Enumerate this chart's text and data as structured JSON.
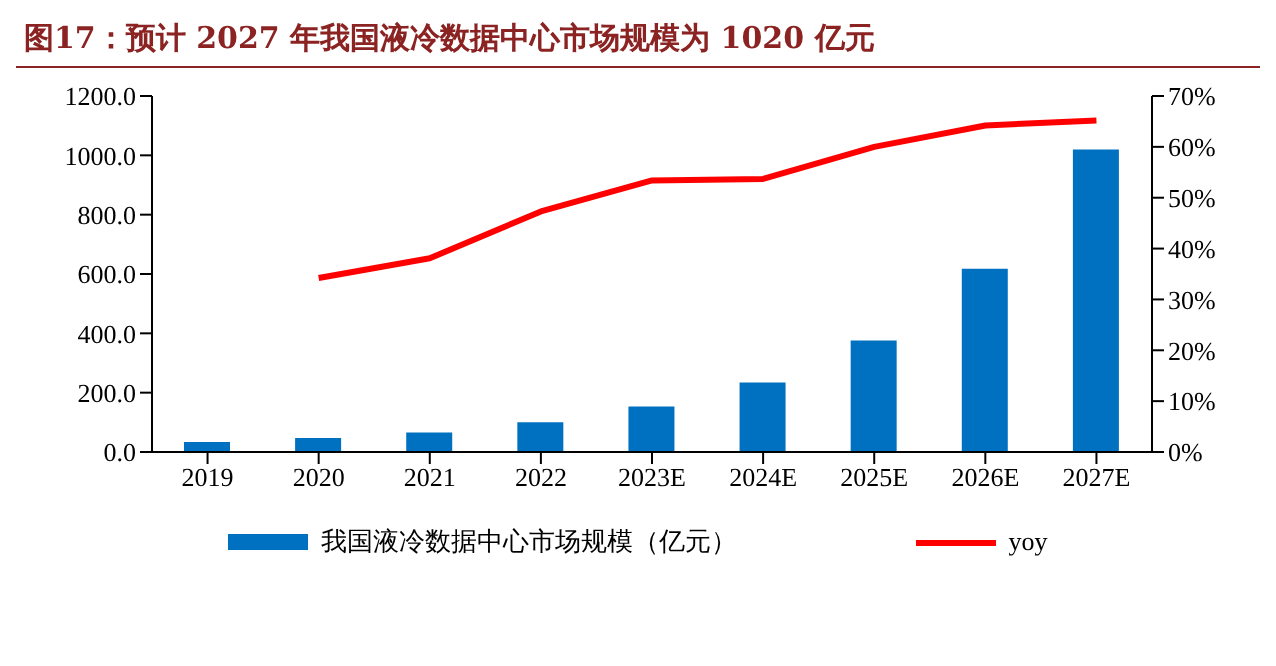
{
  "chart_data": {
    "type": "bar",
    "title": "图17：预计 2027 年我国液冷数据中心市场规模为 1020 亿元",
    "categories": [
      "2019",
      "2020",
      "2021",
      "2022",
      "2023E",
      "2024E",
      "2025E",
      "2026E",
      "2027E"
    ],
    "series": [
      {
        "name": "我国液冷数据中心市场规模（亿元）",
        "color": "#0070c0",
        "values": [
          34,
          47,
          66,
          100,
          153,
          234,
          376,
          618,
          1020
        ]
      },
      {
        "name": "yoy",
        "type": "line",
        "axis": "y2",
        "color": "#ff0000",
        "values": [
          null,
          34.2,
          38.1,
          47.3,
          53.4,
          53.7,
          60.0,
          64.2,
          65.2
        ]
      }
    ],
    "ylim": [
      0,
      1200
    ],
    "yticks": [
      {
        "value": 0,
        "label": "0.0"
      },
      {
        "value": 200,
        "label": "200.0"
      },
      {
        "value": 400,
        "label": "400.0"
      },
      {
        "value": 600,
        "label": "600.0"
      },
      {
        "value": 800,
        "label": "800.0"
      },
      {
        "value": 1000,
        "label": "1000.0"
      },
      {
        "value": 1200,
        "label": "1200.0"
      }
    ],
    "y2lim": [
      0,
      70
    ],
    "y2ticks": [
      {
        "value": 0,
        "label": "0%"
      },
      {
        "value": 10,
        "label": "10%"
      },
      {
        "value": 20,
        "label": "20%"
      },
      {
        "value": 30,
        "label": "30%"
      },
      {
        "value": 40,
        "label": "40%"
      },
      {
        "value": 50,
        "label": "50%"
      },
      {
        "value": 60,
        "label": "60%"
      },
      {
        "value": 70,
        "label": "70%"
      }
    ],
    "grid": false,
    "legend": "bottom",
    "marker": "none"
  }
}
